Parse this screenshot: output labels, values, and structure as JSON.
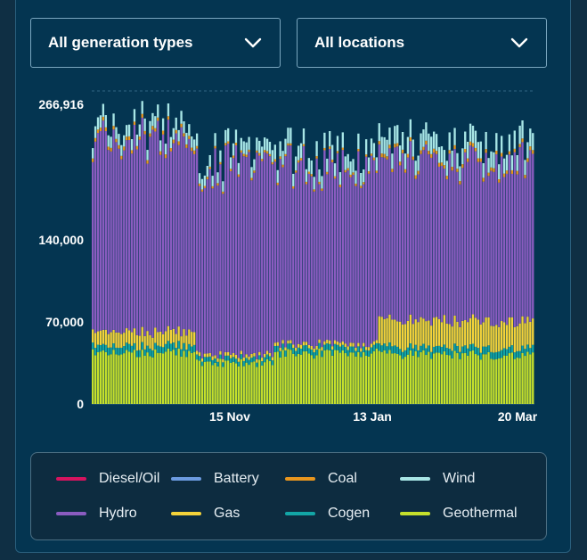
{
  "filters": {
    "generation_type": "All generation types",
    "location": "All locations"
  },
  "legend": [
    {
      "label": "Diesel/Oil",
      "color": "#d6145f"
    },
    {
      "label": "Battery",
      "color": "#6c9be0"
    },
    {
      "label": "Coal",
      "color": "#e8961e"
    },
    {
      "label": "Wind",
      "color": "#a8e6e6"
    },
    {
      "label": "Hydro",
      "color": "#8a5cc0"
    },
    {
      "label": "Gas",
      "color": "#f4d33a"
    },
    {
      "label": "Cogen",
      "color": "#13a6a6"
    },
    {
      "label": "Geothermal",
      "color": "#c5e02c"
    }
  ],
  "chart_data": {
    "type": "bar",
    "stacked": true,
    "y_ticks": [
      "266,916",
      "140,000",
      "70,000",
      "0"
    ],
    "x_ticks": [
      "15 Nov",
      "13 Jan",
      "20 Mar"
    ],
    "ylim": [
      0,
      266916
    ],
    "grid": "dashed line at maximum",
    "series_order": [
      "Geothermal",
      "Cogen",
      "Gas",
      "Hydro",
      "Coal",
      "Wind"
    ],
    "segments": [
      {
        "days": 40,
        "Geothermal": 43000,
        "Cogen": 6000,
        "Gas": 12000,
        "Hydro": 162000,
        "Coal": 3000,
        "Wind": 10000
      },
      {
        "days": 30,
        "Geothermal": 35000,
        "Cogen": 4000,
        "Gas": 3000,
        "Hydro": 160000,
        "Coal": 2000,
        "Wind": 10000
      },
      {
        "days": 40,
        "Geothermal": 43000,
        "Cogen": 5000,
        "Gas": 3000,
        "Hydro": 150000,
        "Coal": 2000,
        "Wind": 12000
      },
      {
        "days": 60,
        "Geothermal": 42000,
        "Cogen": 6000,
        "Gas": 23000,
        "Hydro": 135000,
        "Coal": 3000,
        "Wind": 14000
      }
    ]
  }
}
